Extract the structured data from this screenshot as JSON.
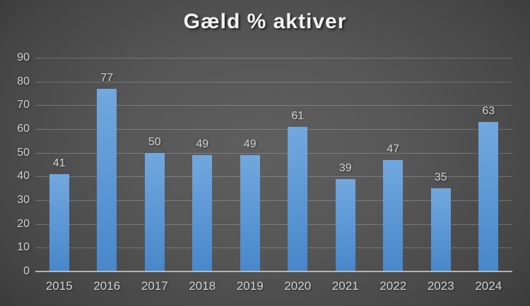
{
  "chart_data": {
    "type": "bar",
    "title": "Gæld % aktiver",
    "categories": [
      "2015",
      "2016",
      "2017",
      "2018",
      "2019",
      "2020",
      "2021",
      "2022",
      "2023",
      "2024"
    ],
    "values": [
      41,
      77,
      50,
      49,
      49,
      61,
      39,
      47,
      35,
      63
    ],
    "xlabel": "",
    "ylabel": "",
    "ylim": [
      0,
      90
    ],
    "yticks": [
      0,
      10,
      20,
      30,
      40,
      50,
      60,
      70,
      80,
      90
    ],
    "grid": true,
    "legend": false,
    "data_labels": true,
    "colors": {
      "background_center": "#5f5f5f",
      "background_edge": "#242424",
      "bar_top": "#73a8de",
      "bar_bottom": "#4787ca",
      "gridline": "#6f6f6f",
      "axis_line": "#cdcdcd",
      "tick_label": "#d2d2d2",
      "title": "#f2f2f2"
    }
  }
}
